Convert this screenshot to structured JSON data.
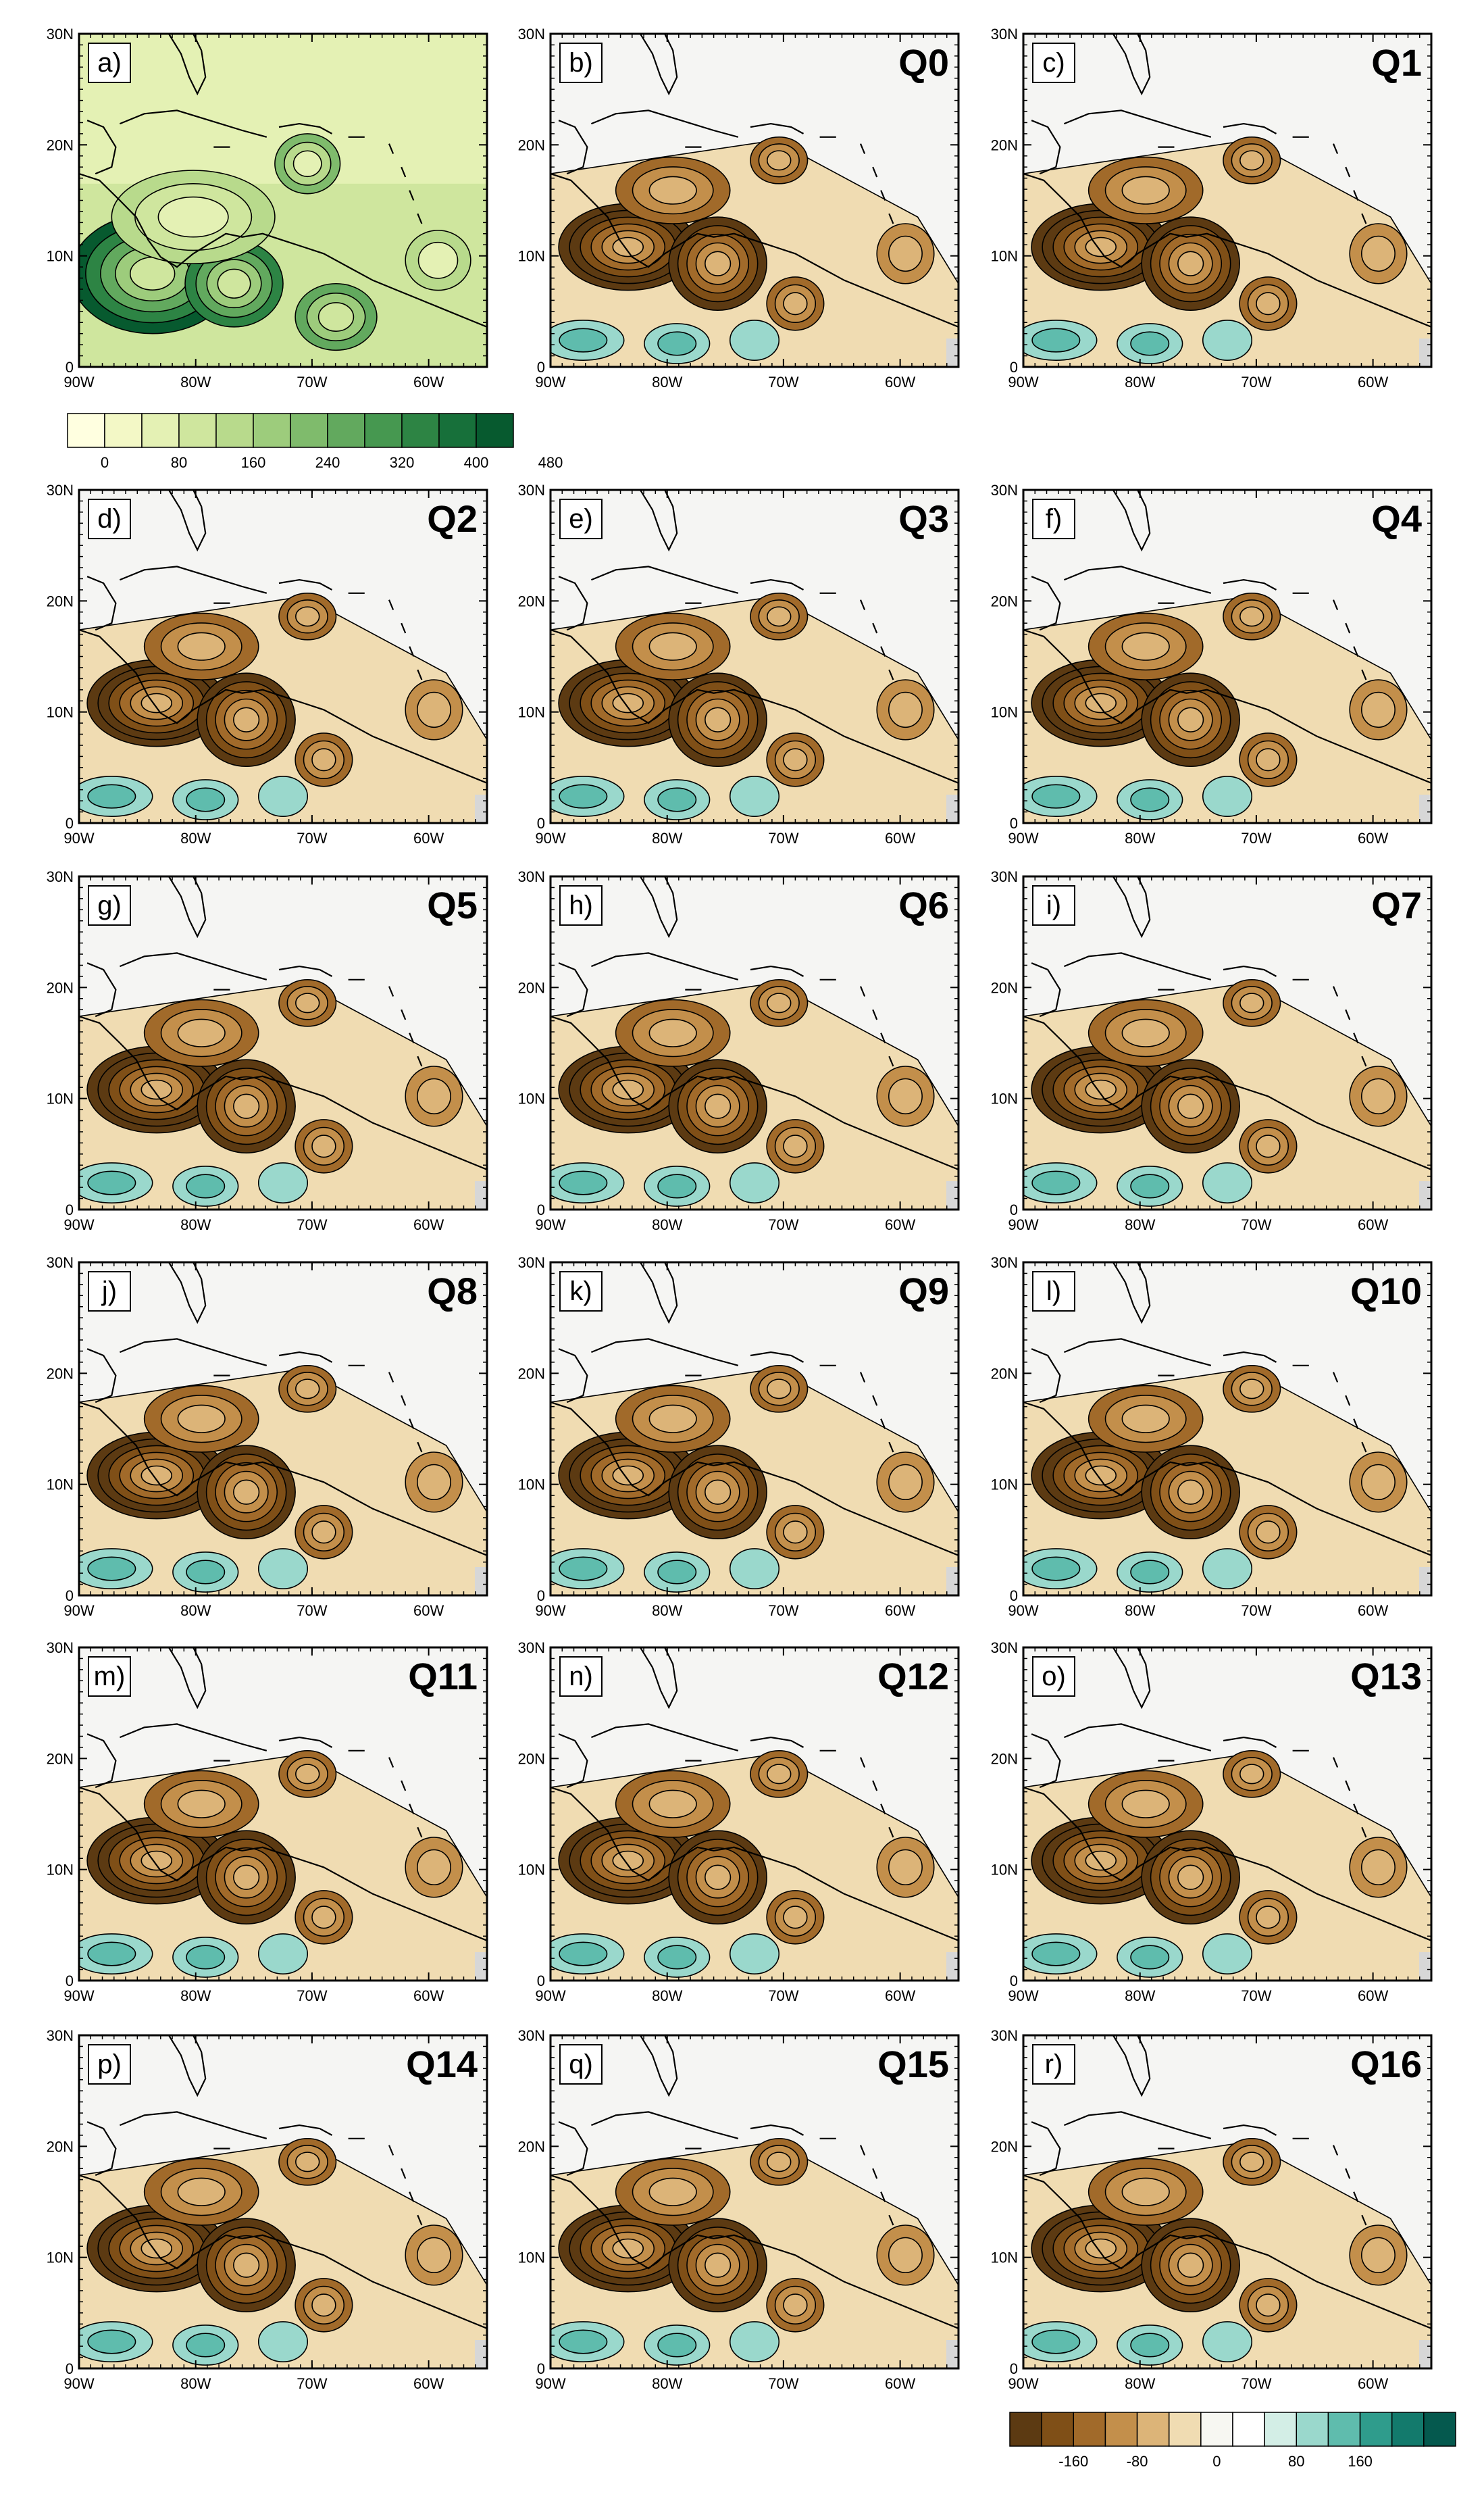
{
  "axes": {
    "lon_labels": [
      "90W",
      "80W",
      "70W",
      "60W"
    ],
    "lat_labels": [
      "0",
      "10N",
      "20N",
      "30N"
    ]
  },
  "panels": [
    {
      "letter": "a)",
      "title": ""
    },
    {
      "letter": "b)",
      "title": "Q0"
    },
    {
      "letter": "c)",
      "title": "Q1"
    },
    {
      "letter": "d)",
      "title": "Q2"
    },
    {
      "letter": "e)",
      "title": "Q3"
    },
    {
      "letter": "f)",
      "title": "Q4"
    },
    {
      "letter": "g)",
      "title": "Q5"
    },
    {
      "letter": "h)",
      "title": "Q6"
    },
    {
      "letter": "i)",
      "title": "Q7"
    },
    {
      "letter": "j)",
      "title": "Q8"
    },
    {
      "letter": "k)",
      "title": "Q9"
    },
    {
      "letter": "l)",
      "title": "Q10"
    },
    {
      "letter": "m)",
      "title": "Q11"
    },
    {
      "letter": "n)",
      "title": "Q12"
    },
    {
      "letter": "o)",
      "title": "Q13"
    },
    {
      "letter": "p)",
      "title": "Q14"
    },
    {
      "letter": "q)",
      "title": "Q15"
    },
    {
      "letter": "r)",
      "title": "Q16"
    }
  ],
  "colorbars": {
    "precip": {
      "labels": [
        "0",
        "80",
        "160",
        "240",
        "320",
        "400",
        "480"
      ],
      "colors": [
        "#ffffe0",
        "#f3f8c6",
        "#e4f1b4",
        "#cfe69e",
        "#b8da8c",
        "#9dcc7c",
        "#7fbb6c",
        "#62a95e",
        "#469850",
        "#2d8444",
        "#17703a",
        "#075a2f"
      ]
    },
    "bias": {
      "labels": [
        "-160",
        "-80",
        "0",
        "80",
        "160"
      ],
      "colors": [
        "#5c3a12",
        "#7f4f17",
        "#a16a2a",
        "#c38f4b",
        "#dcb478",
        "#f0dcb2",
        "#f7f7f2",
        "#ffffff",
        "#d3eee6",
        "#9ad8cc",
        "#5fbcad",
        "#2f9c8c",
        "#137a6c",
        "#05594e"
      ]
    }
  }
}
